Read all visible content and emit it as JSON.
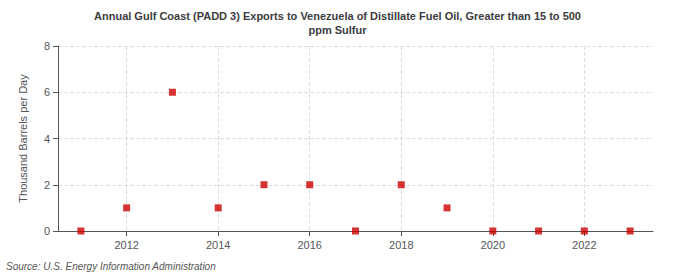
{
  "chart_data": {
    "type": "scatter",
    "title": "Annual Gulf Coast (PADD 3) Exports to Venezuela of Distillate Fuel Oil, Greater than 15 to 500\nppm Sulfur",
    "ylabel": "Thousand Barrels per Day",
    "annotations": [
      "Source: U.S. Energy Information Administration"
    ],
    "x": [
      2011,
      2012,
      2013,
      2014,
      2015,
      2016,
      2017,
      2018,
      2019,
      2020,
      2021,
      2022,
      2023
    ],
    "values": [
      0,
      1,
      6,
      1,
      2,
      2,
      0,
      2,
      1,
      0,
      0,
      0,
      0
    ],
    "color": "#cc0000",
    "marker": "square",
    "xlim": [
      2010.5,
      2023.5
    ],
    "xticks": [
      2012,
      2014,
      2016,
      2018,
      2020,
      2022
    ],
    "ylim": [
      0,
      8
    ],
    "yticks": [
      0,
      2,
      4,
      6,
      8
    ],
    "grid": true
  }
}
